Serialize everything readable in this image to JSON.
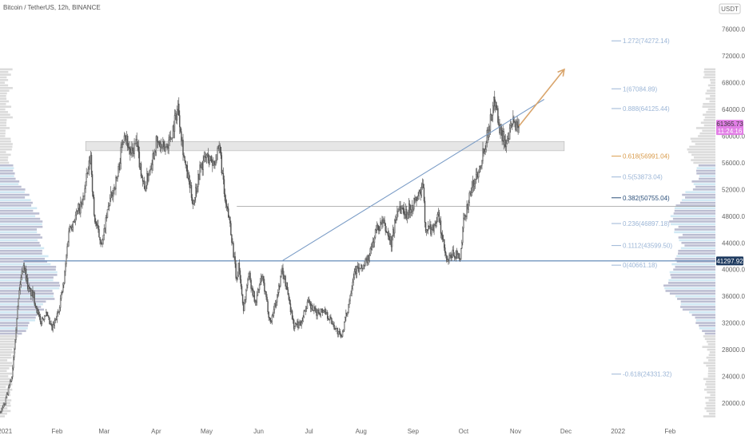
{
  "header": {
    "title": "Bitcoin / TetherUS, 12h, BINANCE",
    "currency": "USDT"
  },
  "colors": {
    "candle": "#555555",
    "trendline": "#7a9cc6",
    "support": "#3f6fa8",
    "arrow": "#d9a56c",
    "fib_line": "#9bb5d6",
    "fib_golden": "#d89a4a",
    "fib_key": "#2b4f7a",
    "zone": "#c8c8c8",
    "price_badge": "#e27ee6",
    "support_badge": "#1e3a5f",
    "vp_light": "#cce7f3",
    "vp_dark": "#b5b7cd",
    "vp_gray": "#d7d7d7"
  },
  "chart_data": {
    "type": "candlestick",
    "title": "Bitcoin / TetherUS, 12h, BINANCE",
    "xlabel": "",
    "ylabel": "",
    "ylim": [
      17000,
      78000
    ],
    "y_ticks": [
      20000,
      24000,
      28000,
      32000,
      36000,
      40000,
      44000,
      48000,
      52000,
      56000,
      60000,
      64000,
      68000,
      72000,
      76000
    ],
    "y_tick_labels": [
      "20000.00",
      "24000.00",
      "28000.00",
      "32000.00",
      "36000.00",
      "40000.00",
      "44000.00",
      "48000.00",
      "52000.00",
      "56000.00",
      "60000.00",
      "64000.00",
      "68000.00",
      "72000.00",
      "76000.00"
    ],
    "x_range": [
      "2020-12-29",
      "2022-02-28"
    ],
    "x_ticks": [
      {
        "date": "2021-01-01",
        "label": "2021"
      },
      {
        "date": "2021-02-01",
        "label": "Feb"
      },
      {
        "date": "2021-03-01",
        "label": "Mar"
      },
      {
        "date": "2021-04-01",
        "label": "Apr"
      },
      {
        "date": "2021-05-01",
        "label": "May"
      },
      {
        "date": "2021-06-01",
        "label": "Jun"
      },
      {
        "date": "2021-07-01",
        "label": "Jul"
      },
      {
        "date": "2021-08-01",
        "label": "Aug"
      },
      {
        "date": "2021-09-01",
        "label": "Sep"
      },
      {
        "date": "2021-10-01",
        "label": "Oct"
      },
      {
        "date": "2021-11-01",
        "label": "Nov"
      },
      {
        "date": "2021-12-01",
        "label": "Dec"
      },
      {
        "date": "2022-01-01",
        "label": "2022"
      },
      {
        "date": "2022-02-01",
        "label": "Feb"
      }
    ],
    "price_path": [
      [
        "2020-12-29",
        18500
      ],
      [
        "2021-01-01",
        20000
      ],
      [
        "2021-01-05",
        24000
      ],
      [
        "2021-01-08",
        33000
      ],
      [
        "2021-01-10",
        38000
      ],
      [
        "2021-01-12",
        41000
      ],
      [
        "2021-01-15",
        37000
      ],
      [
        "2021-01-18",
        36000
      ],
      [
        "2021-01-22",
        32000
      ],
      [
        "2021-01-25",
        33500
      ],
      [
        "2021-01-29",
        31000
      ],
      [
        "2021-02-01",
        33000
      ],
      [
        "2021-02-05",
        38000
      ],
      [
        "2021-02-08",
        46000
      ],
      [
        "2021-02-12",
        48000
      ],
      [
        "2021-02-16",
        50000
      ],
      [
        "2021-02-21",
        57000
      ],
      [
        "2021-02-23",
        48000
      ],
      [
        "2021-02-26",
        45000
      ],
      [
        "2021-02-28",
        44000
      ],
      [
        "2021-03-04",
        50000
      ],
      [
        "2021-03-09",
        54000
      ],
      [
        "2021-03-13",
        61000
      ],
      [
        "2021-03-17",
        57000
      ],
      [
        "2021-03-20",
        59000
      ],
      [
        "2021-03-25",
        52000
      ],
      [
        "2021-03-28",
        55000
      ],
      [
        "2021-04-01",
        59000
      ],
      [
        "2021-04-06",
        58000
      ],
      [
        "2021-04-10",
        60000
      ],
      [
        "2021-04-14",
        64500
      ],
      [
        "2021-04-18",
        56000
      ],
      [
        "2021-04-23",
        50000
      ],
      [
        "2021-04-27",
        55000
      ],
      [
        "2021-05-01",
        57000
      ],
      [
        "2021-05-05",
        56000
      ],
      [
        "2021-05-09",
        58000
      ],
      [
        "2021-05-12",
        50000
      ],
      [
        "2021-05-15",
        47000
      ],
      [
        "2021-05-19",
        38000
      ],
      [
        "2021-05-20",
        41000
      ],
      [
        "2021-05-23",
        34000
      ],
      [
        "2021-05-26",
        39500
      ],
      [
        "2021-05-30",
        35000
      ],
      [
        "2021-06-03",
        39000
      ],
      [
        "2021-06-08",
        32000
      ],
      [
        "2021-06-12",
        36000
      ],
      [
        "2021-06-15",
        40000
      ],
      [
        "2021-06-18",
        37000
      ],
      [
        "2021-06-22",
        31500
      ],
      [
        "2021-06-26",
        32000
      ],
      [
        "2021-06-30",
        35000
      ],
      [
        "2021-07-05",
        33500
      ],
      [
        "2021-07-10",
        34000
      ],
      [
        "2021-07-15",
        32000
      ],
      [
        "2021-07-20",
        29800
      ],
      [
        "2021-07-24",
        34000
      ],
      [
        "2021-07-28",
        40000
      ],
      [
        "2021-08-01",
        40000
      ],
      [
        "2021-08-06",
        42000
      ],
      [
        "2021-08-10",
        46000
      ],
      [
        "2021-08-14",
        47000
      ],
      [
        "2021-08-19",
        44000
      ],
      [
        "2021-08-23",
        49500
      ],
      [
        "2021-08-28",
        48500
      ],
      [
        "2021-09-03",
        50500
      ],
      [
        "2021-09-07",
        52500
      ],
      [
        "2021-09-08",
        46500
      ],
      [
        "2021-09-12",
        46000
      ],
      [
        "2021-09-16",
        48000
      ],
      [
        "2021-09-21",
        41000
      ],
      [
        "2021-09-25",
        42500
      ],
      [
        "2021-09-29",
        41500
      ],
      [
        "2021-10-01",
        47000
      ],
      [
        "2021-10-05",
        51500
      ],
      [
        "2021-10-10",
        55000
      ],
      [
        "2021-10-15",
        60000
      ],
      [
        "2021-10-20",
        66000
      ],
      [
        "2021-10-22",
        61500
      ],
      [
        "2021-10-27",
        58500
      ],
      [
        "2021-10-30",
        62000
      ],
      [
        "2021-11-03",
        61500
      ]
    ],
    "fib_levels": [
      {
        "label": "1.272(74272.14)",
        "value": 74272.14,
        "color_key": "fib_line"
      },
      {
        "label": "1(67084.89)",
        "value": 67084.89,
        "color_key": "fib_line"
      },
      {
        "label": "0.888(64125.44)",
        "value": 64125.44,
        "color_key": "fib_line"
      },
      {
        "label": "0.618(56991.04)",
        "value": 56991.04,
        "color_key": "fib_golden"
      },
      {
        "label": "0.5(53873.04)",
        "value": 53873.04,
        "color_key": "fib_line"
      },
      {
        "label": "0.382(50755.04)",
        "value": 50755.04,
        "color_key": "fib_key"
      },
      {
        "label": "0.236(46897.18)",
        "value": 46897.18,
        "color_key": "fib_line"
      },
      {
        "label": "0.1112(43599.50)",
        "value": 43599.5,
        "color_key": "fib_line"
      },
      {
        "label": "0(40661.18)",
        "value": 40661.18,
        "color_key": "fib_line"
      },
      {
        "label": "-0.618(24331.32)",
        "value": 24331.32,
        "color_key": "fib_line"
      }
    ],
    "support_level": 41297.92,
    "resistance_zone": [
      57800,
      59200
    ],
    "level_50k": 49500,
    "trendline": {
      "start": [
        "2021-06-15",
        41300
      ],
      "end": [
        "2021-11-18",
        65500
      ]
    },
    "projection_arrow": {
      "start": [
        "2021-11-03",
        61500
      ],
      "end": [
        "2021-11-30",
        70000
      ]
    },
    "current_price": "61365.73",
    "countdown": "11:24:16",
    "support_label": "41297.92"
  }
}
